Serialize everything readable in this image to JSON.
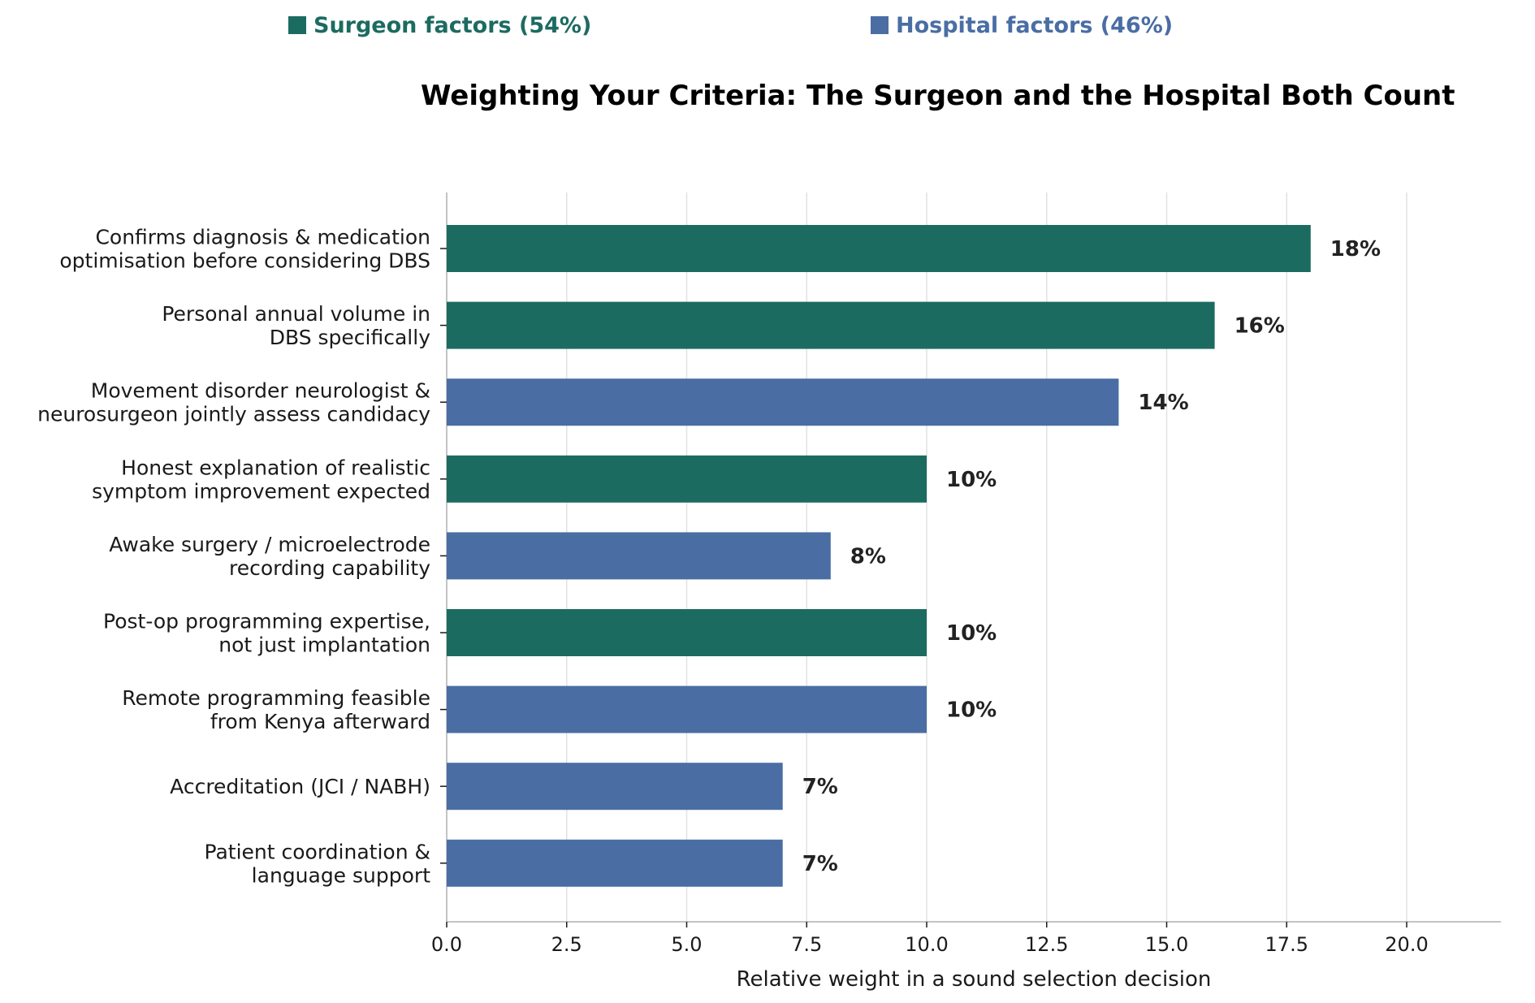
{
  "legend": {
    "surgeon": "Surgeon factors (54%)",
    "hospital": "Hospital factors (46%)"
  },
  "colors": {
    "surgeon": "#1c6b61",
    "hospital": "#4a6da4",
    "grid": "#e2e2e2",
    "axis": "#b0b0b0"
  },
  "chart_data": {
    "type": "bar",
    "orientation": "horizontal",
    "title": "Weighting Your Criteria: The Surgeon and the Hospital Both Count",
    "xlabel": "Relative weight in a sound selection decision",
    "ylabel": "",
    "xlim": [
      0,
      22
    ],
    "xticks": [
      "0.0",
      "2.5",
      "5.0",
      "7.5",
      "10.0",
      "12.5",
      "15.0",
      "17.5",
      "20.0"
    ],
    "xtick_values": [
      0,
      2.5,
      5,
      7.5,
      10,
      12.5,
      15,
      17.5,
      20
    ],
    "grid": "vertical",
    "legend_placement": "top",
    "categories": [
      [
        "Confirms diagnosis & medication",
        "optimisation before considering DBS"
      ],
      [
        "Personal annual volume in",
        "DBS specifically"
      ],
      [
        "Movement disorder neurologist &",
        "neurosurgeon jointly assess candidacy"
      ],
      [
        "Honest explanation of realistic",
        "symptom improvement expected"
      ],
      [
        "Awake surgery / microelectrode",
        "recording capability"
      ],
      [
        "Post-op programming expertise,",
        "not just implantation"
      ],
      [
        "Remote programming feasible",
        "from Kenya afterward"
      ],
      [
        "Accreditation (JCI / NABH)"
      ],
      [
        "Patient coordination &",
        "language support"
      ]
    ],
    "values": [
      18,
      16,
      14,
      10,
      8,
      10,
      10,
      7,
      7
    ],
    "value_labels": [
      "18%",
      "16%",
      "14%",
      "10%",
      "8%",
      "10%",
      "10%",
      "7%",
      "7%"
    ],
    "groups": [
      "surgeon",
      "surgeon",
      "hospital",
      "surgeon",
      "hospital",
      "surgeon",
      "hospital",
      "hospital",
      "hospital"
    ]
  }
}
